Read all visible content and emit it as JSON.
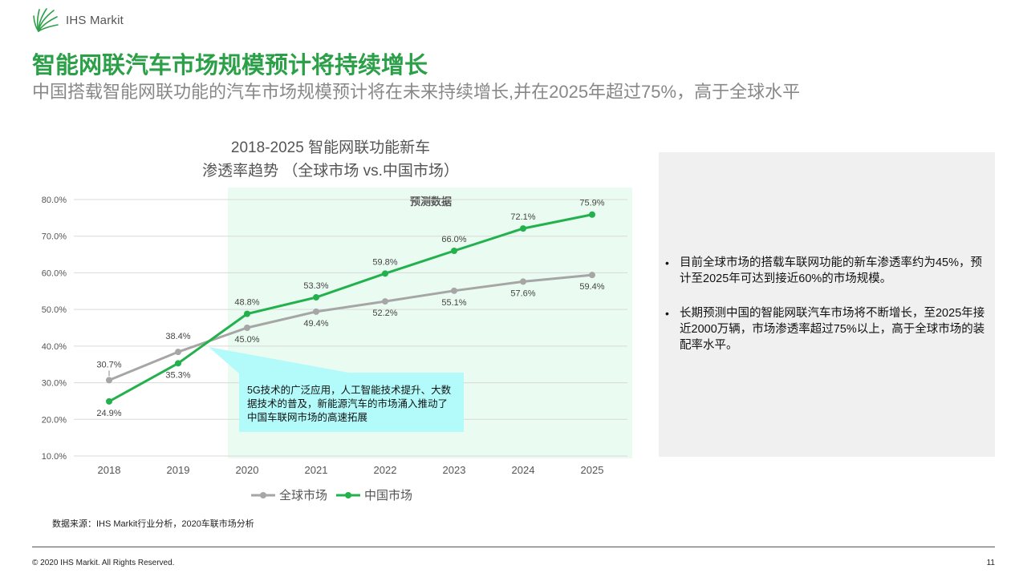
{
  "header": {
    "logo_text": "IHS Markit",
    "title": "智能网联汽车市场规模预计将持续增长",
    "subtitle": "中国搭载智能网联功能的汽车市场规模预计将在未来持续增长,并在2025年超过75%，高于全球水平"
  },
  "chart_data": {
    "type": "line",
    "title_line1": "2018-2025 智能网联功能新车",
    "title_line2": "渗透率趋势 （全球市场 vs.中国市场）",
    "categories": [
      "2018",
      "2019",
      "2020",
      "2021",
      "2022",
      "2023",
      "2024",
      "2025"
    ],
    "y_ticks": [
      "10.0%",
      "20.0%",
      "30.0%",
      "40.0%",
      "50.0%",
      "60.0%",
      "70.0%",
      "80.0%"
    ],
    "ylim": [
      10,
      80
    ],
    "forecast_label": "预测数据",
    "forecast_start_category": "2020",
    "series": [
      {
        "name": "全球市场",
        "color": "#a6a6a6",
        "values": [
          30.7,
          38.4,
          45.0,
          49.4,
          52.2,
          55.1,
          57.6,
          59.4
        ],
        "labels": [
          "30.7%",
          "38.4%",
          "45.0%",
          "49.4%",
          "52.2%",
          "55.1%",
          "57.6%",
          "59.4%"
        ]
      },
      {
        "name": "中国市场",
        "color": "#22b14c",
        "values": [
          24.9,
          35.3,
          48.8,
          53.3,
          59.8,
          66.0,
          72.1,
          75.9
        ],
        "labels": [
          "24.9%",
          "35.3%",
          "48.8%",
          "53.3%",
          "59.8%",
          "66.0%",
          "72.1%",
          "75.9%"
        ]
      }
    ],
    "callout_text": "5G技术的广泛应用，人工智能技术提升、大数据技术的普及，新能源汽车的市场涌入推动了中国车联网市场的高速拓展"
  },
  "legend": {
    "global": "全球市场",
    "china": "中国市场"
  },
  "source": "数据来源：IHS Markit行业分析，2020车联市场分析",
  "panel": {
    "bullets": [
      "目前全球市场的搭载车联网功能的新车渗透率约为45%，预计至2025年可达到接近60%的市场规模。",
      "长期预测中国的智能网联汽车市场将不断增长，至2025年接近2000万辆，市场渗透率超过75%以上，高于全球市场的装配率水平。"
    ]
  },
  "footer": {
    "copyright": "© 2020 IHS Markit. All Rights Reserved.",
    "page_number": "11"
  },
  "colors": {
    "brand_green": "#2ca048",
    "global_line": "#a6a6a6",
    "china_line": "#22b14c",
    "forecast_bg": "#eafbf1",
    "callout_bg": "#b3fbfb"
  }
}
